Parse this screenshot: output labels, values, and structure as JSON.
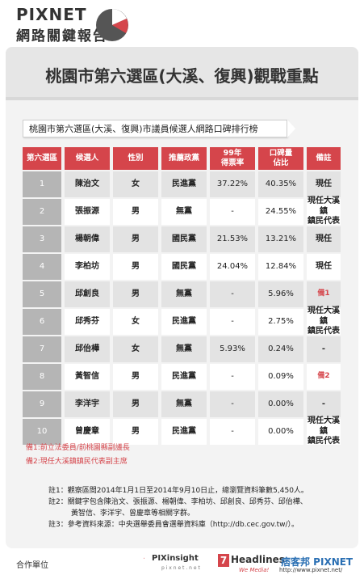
{
  "header": {
    "brand_line1": "PIXNET",
    "brand_line2": "網路關鍵報告"
  },
  "title": "桃園市第六選區(大溪、復興)觀戰重點",
  "subtitle": "桃園市第六選區(大溪、復興)市議員候選人網路口碑排行榜",
  "table": {
    "headers": [
      "第六選區",
      "候選人",
      "性別",
      "推薦政黨",
      "99年\n得票率",
      "口碑量\n佔比",
      "備註"
    ],
    "rows": [
      {
        "rank": "1",
        "name": "陳治文",
        "gender": "女",
        "party": "民進黨",
        "vote99": "37.22%",
        "share": "40.35%",
        "note": "現任",
        "note_red": false
      },
      {
        "rank": "2",
        "name": "張振源",
        "gender": "男",
        "party": "無黨",
        "vote99": "-",
        "share": "24.55%",
        "note": "現任大溪鎮\n鎮民代表",
        "note_red": false
      },
      {
        "rank": "3",
        "name": "楊朝偉",
        "gender": "男",
        "party": "國民黨",
        "vote99": "21.53%",
        "share": "13.21%",
        "note": "現任",
        "note_red": false
      },
      {
        "rank": "4",
        "name": "李柏坊",
        "gender": "男",
        "party": "國民黨",
        "vote99": "24.04%",
        "share": "12.84%",
        "note": "現任",
        "note_red": false
      },
      {
        "rank": "5",
        "name": "邱創良",
        "gender": "男",
        "party": "無黨",
        "vote99": "-",
        "share": "5.96%",
        "note": "備1",
        "note_red": true
      },
      {
        "rank": "6",
        "name": "邱秀芬",
        "gender": "女",
        "party": "民進黨",
        "vote99": "-",
        "share": "2.75%",
        "note": "現任大溪鎮\n鎮民代表",
        "note_red": false
      },
      {
        "rank": "7",
        "name": "邱佁樺",
        "gender": "女",
        "party": "無黨",
        "vote99": "5.93%",
        "share": "0.24%",
        "note": "-",
        "note_red": false
      },
      {
        "rank": "8",
        "name": "黃智信",
        "gender": "男",
        "party": "民進黨",
        "vote99": "-",
        "share": "0.09%",
        "note": "備2",
        "note_red": true
      },
      {
        "rank": "9",
        "name": "李洋宇",
        "gender": "男",
        "party": "無黨",
        "vote99": "-",
        "share": "0.00%",
        "note": "-",
        "note_red": false
      },
      {
        "rank": "10",
        "name": "曾慶章",
        "gender": "男",
        "party": "民進黨",
        "vote99": "-",
        "share": "0.00%",
        "note": "現任大溪鎮\n鎮民代表",
        "note_red": false
      }
    ]
  },
  "footnotes": {
    "b1": "備1:前立法委員/前桃園縣副議長",
    "b2": "備2:現任大溪鎮鎮民代表副主席"
  },
  "notes": {
    "n1": "註1：觀察區間2014年1月1日至2014年9月10日止，總瀏覽資料筆數5,450人。",
    "n2a": "註2：關鍵字包含陳治文、張振源、楊朝偉、李柏坊、邱創良、邱秀芬、邱佁樺、",
    "n2b": "黃智信、李洋宇、曾慶章等相關字群。",
    "n3": "註3：參考資料來源：中央選舉委員會選舉資料庫（http://db.cec.gov.tw/）。"
  },
  "footer": {
    "partner_label": "合作單位",
    "logo1": "PIXinsight",
    "logo1_sub": "p i x n e t . n e t",
    "logo2_num": "7",
    "logo2": "Headlines",
    "logo2_sub": "We Media!",
    "logo3": "痞客邦 PIXNET",
    "logo3_sub": "http://www.pixnet.net/"
  },
  "colors": {
    "accent_red": "#d5454b",
    "rank_gray": "#b5b5b5",
    "row_alt": "#e3e3e3"
  }
}
